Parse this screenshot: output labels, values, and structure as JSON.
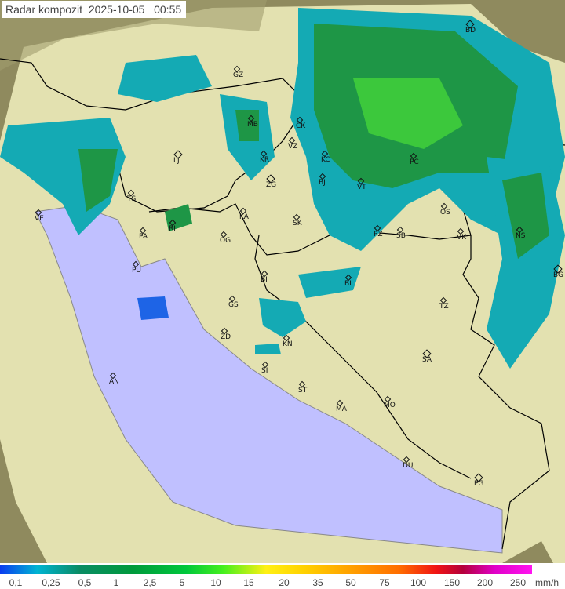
{
  "title": "Radar kompozit  2025-10-05   00:55",
  "cities": [
    "BD",
    "GZ",
    "MB",
    "CK",
    "VZ",
    "KR",
    "KC",
    "BJ",
    "VT",
    "PC",
    "LJ",
    "ZG",
    "TS",
    "VE",
    "KA",
    "SK",
    "RI",
    "PA",
    "OG",
    "PZ",
    "SB",
    "OS",
    "VK",
    "NS",
    "BG",
    "PU",
    "BL",
    "BI",
    "GS",
    "TZ",
    "ZD",
    "KN",
    "SI",
    "SA",
    "ST",
    "AN",
    "MA",
    "MO",
    "DU",
    "PG"
  ],
  "legend": {
    "ticks": [
      "0,1",
      "0,25",
      "0,5",
      "1",
      "2,5",
      "5",
      "10",
      "15",
      "20",
      "35",
      "50",
      "75",
      "100",
      "150",
      "200",
      "250"
    ],
    "unit": "mm/h"
  },
  "colors": {
    "sea": "#c0c0ff",
    "land": "#e6e6b4",
    "outside": "#9a9060",
    "rain_light": "#1e8cdc",
    "rain_mid": "#14aab4",
    "rain_heavy": "#1e9646",
    "rain_peak": "#5adc32",
    "borders": "#000000"
  }
}
